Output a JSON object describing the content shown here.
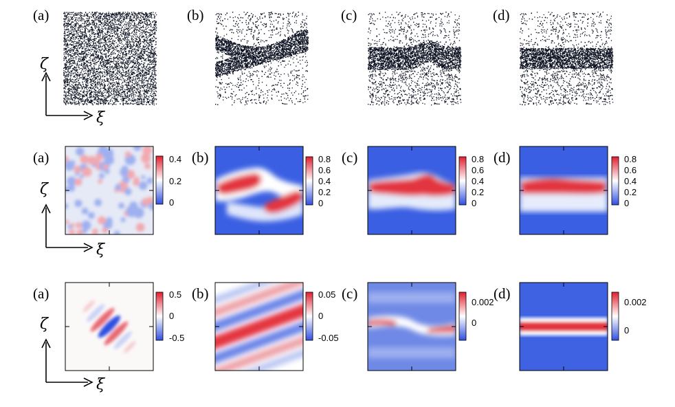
{
  "panel_labels": [
    "(a)",
    "(b)",
    "(c)",
    "(d)"
  ],
  "axes": {
    "horizontal": "ξ",
    "vertical": "ζ"
  },
  "rows": [
    {
      "kind": "particles",
      "panels": [
        "(a)",
        "(b)",
        "(c)",
        "(d)"
      ]
    },
    {
      "kind": "density",
      "colorbar_ticks": [
        [
          "0.4",
          "0.2",
          "0"
        ],
        [
          "0.8",
          "0.6",
          "0.4",
          "0.2",
          "0"
        ],
        [
          "0.8",
          "0.6",
          "0.4",
          "0.2",
          "0"
        ],
        [
          "0.8",
          "0.6",
          "0.4",
          "0.2",
          "0"
        ]
      ]
    },
    {
      "kind": "correlation",
      "colorbar_ticks": [
        [
          "0.5",
          "0",
          "-0.5"
        ],
        [
          "0.05",
          "0",
          "-0.05"
        ],
        [
          "0.002",
          "0"
        ],
        [
          "0.002",
          "0"
        ]
      ]
    }
  ],
  "colors": {
    "low": "#3355dd",
    "mid": "#ffffff",
    "high": "#dd2233",
    "dots": "#0a1020"
  }
}
